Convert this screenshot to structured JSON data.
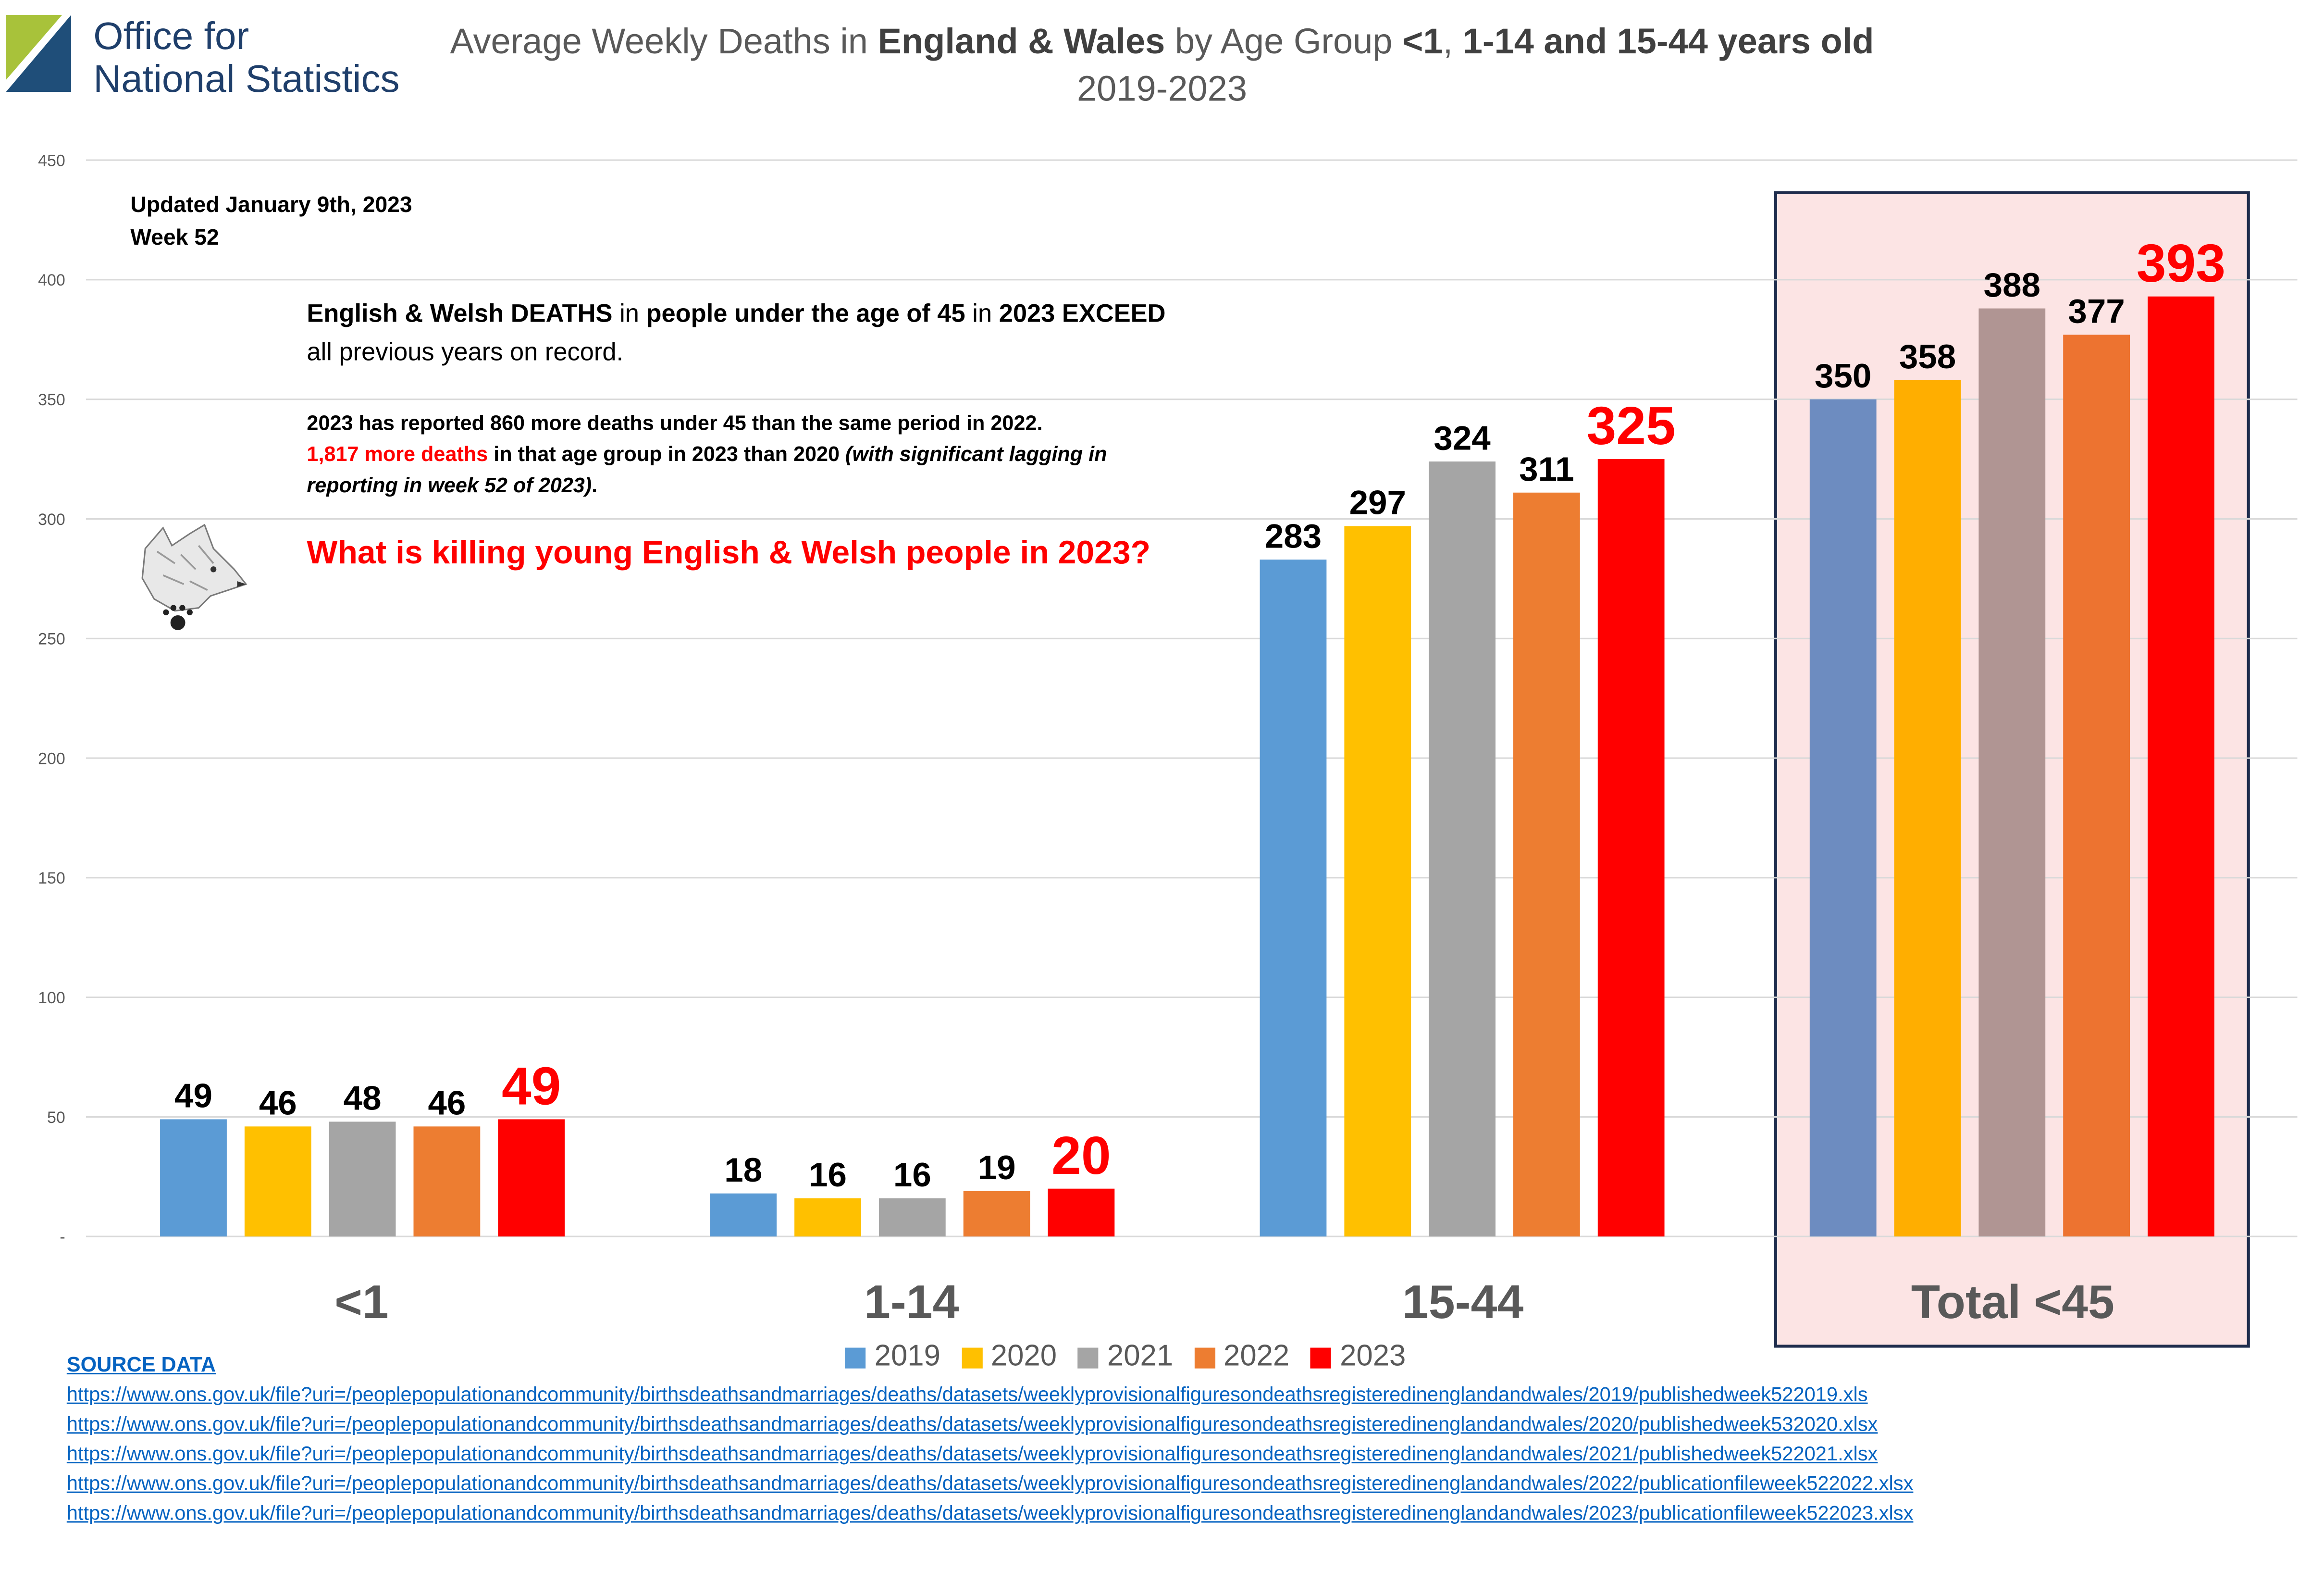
{
  "header": {
    "logo_line1": "Office for",
    "logo_line2": "National Statistics",
    "title_parts": [
      "Average Weekly Deaths in ",
      "England & Wales",
      " by Age Group ",
      "<1",
      ", ",
      "1-14 and 15-44 years old"
    ],
    "subtitle": "2019-2023"
  },
  "notes": {
    "updated": "Updated January 9th, 2023",
    "week": "Week 52",
    "headline_parts": [
      "English & Welsh DEATHS",
      " in ",
      "people under the age of 45",
      " in ",
      "2023 EXCEED"
    ],
    "headline_line2": "all previous years on record.",
    "detail_line1": "2023 has reported 860 more deaths under 45 than the same period in 2022.",
    "detail_red": "1,817 more deaths",
    "detail_line2_rest": " in that age group in 2023 than 2020 ",
    "detail_italic": "(with significant lagging in reporting in week 52 of 2023)",
    "detail_end": ".",
    "question": "What is killing young English & Welsh people in 2023?"
  },
  "source": {
    "heading": "SOURCE DATA",
    "links": [
      "https://www.ons.gov.uk/file?uri=/peoplepopulationandcommunity/birthsdeathsandmarriages/deaths/datasets/weeklyprovisionalfiguresondeathsregisteredinenglandandwales/2019/publishedweek522019.xls",
      "https://www.ons.gov.uk/file?uri=/peoplepopulationandcommunity/birthsdeathsandmarriages/deaths/datasets/weeklyprovisionalfiguresondeathsregisteredinenglandandwales/2020/publishedweek532020.xlsx",
      "https://www.ons.gov.uk/file?uri=/peoplepopulationandcommunity/birthsdeathsandmarriages/deaths/datasets/weeklyprovisionalfiguresondeathsregisteredinenglandandwales/2021/publishedweek522021.xlsx",
      "https://www.ons.gov.uk/file?uri=/peoplepopulationandcommunity/birthsdeathsandmarriages/deaths/datasets/weeklyprovisionalfiguresondeathsregisteredinenglandandwales/2022/publicationfileweek522022.xlsx",
      "https://www.ons.gov.uk/file?uri=/peoplepopulationandcommunity/birthsdeathsandmarriages/deaths/datasets/weeklyprovisionalfiguresondeathsregisteredinenglandandwales/2023/publicationfileweek522023.xlsx"
    ]
  },
  "colors": {
    "2019": "#5b9bd5",
    "2020": "#ffc000",
    "2021": "#a5a5a5",
    "2022": "#ed7d31",
    "2023": "#ff0000",
    "total_2019": "#6d8cc0",
    "total_2020": "#ffae00",
    "total_2021": "#b09593",
    "total_2022": "#ed7330",
    "total_2023": "#ff0000",
    "total_bg": "#fce4e4",
    "total_border": "#1f2d4d",
    "grid": "#d9d9d9",
    "axis_text": "#595959"
  },
  "chart_data": {
    "type": "bar",
    "title": "Average Weekly Deaths in England & Wales by Age Group <1, 1-14 and 15-44 years old",
    "subtitle": "2019-2023",
    "categories": [
      "<1",
      "1-14",
      "15-44",
      "Total <45"
    ],
    "series": [
      {
        "name": "2019",
        "values": [
          49,
          18,
          283,
          350
        ]
      },
      {
        "name": "2020",
        "values": [
          46,
          16,
          297,
          358
        ]
      },
      {
        "name": "2021",
        "values": [
          48,
          16,
          324,
          388
        ]
      },
      {
        "name": "2022",
        "values": [
          46,
          19,
          311,
          377
        ]
      },
      {
        "name": "2023",
        "values": [
          49,
          20,
          325,
          393
        ]
      }
    ],
    "ylim": [
      0,
      450
    ],
    "yticks": [
      "-",
      "50",
      "100",
      "150",
      "200",
      "250",
      "300",
      "350",
      "400",
      "450"
    ],
    "xlabel": "",
    "ylabel": "",
    "legend": [
      "2019",
      "2020",
      "2021",
      "2022",
      "2023"
    ],
    "legend_position": "bottom",
    "grid": true
  }
}
